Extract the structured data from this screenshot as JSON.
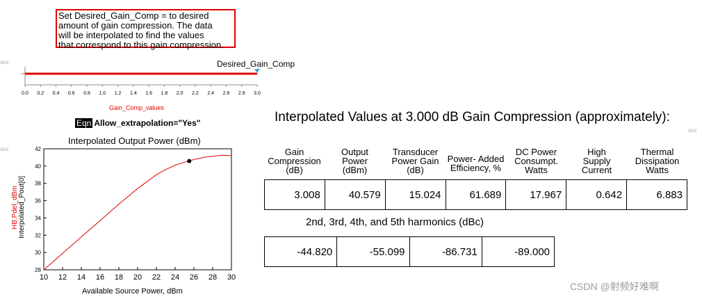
{
  "note": "Set Desired_Gain_Comp =  to desired\namount of gain compression.  The data\nwill be interpolated to find the values\nthat correspond to this gain compression.",
  "ads_tag": "ADS",
  "slider": {
    "label": "Desired_Gain_Comp",
    "axis_label": "Gain_Comp_values",
    "ticks": [
      "0.0",
      "0.2",
      "0.4",
      "0.6",
      "0.8",
      "1.0",
      "1.2",
      "1.4",
      "1.6",
      "1.8",
      "2.0",
      "2.2",
      "2.4",
      "2.6",
      "2.8",
      "3.0"
    ],
    "value": 3.0,
    "min": 0.0,
    "max": 3.0
  },
  "equation": {
    "tag": "Eqn",
    "text": "Allow_extrapolation=\"Yes\""
  },
  "chart_data": {
    "type": "line",
    "title": "Interpolated Output Power (dBm)",
    "xlabel": "Available Source Power, dBm",
    "ylabel_red": "HB.Pdel_dBm",
    "ylabel_black": "Interpolated_Pout[0]",
    "xlim": [
      10,
      30
    ],
    "ylim": [
      28,
      42
    ],
    "x_ticks": [
      "10",
      "12",
      "14",
      "16",
      "18",
      "20",
      "22",
      "24",
      "26",
      "28",
      "30"
    ],
    "y_ticks": [
      "28",
      "30",
      "32",
      "34",
      "36",
      "38",
      "40",
      "42"
    ],
    "series": [
      {
        "x": [
          10,
          12,
          14,
          16,
          18,
          20,
          21,
          22,
          23,
          24,
          25,
          26,
          27,
          28,
          29,
          30
        ],
        "y": [
          28.0,
          29.9,
          31.8,
          33.7,
          35.6,
          37.4,
          38.2,
          39.0,
          39.6,
          40.1,
          40.45,
          40.75,
          41.0,
          41.15,
          41.25,
          41.2
        ],
        "color": "#e00000"
      }
    ],
    "marker": {
      "x": 25.5,
      "y": 40.58
    },
    "grid": false
  },
  "results": {
    "title": "Interpolated Values at 3.000 dB Gain Compression (approximately):",
    "headers": [
      [
        "Gain",
        "Compression",
        "(dB)"
      ],
      [
        "Output",
        "Power",
        "(dBm)"
      ],
      [
        "Transducer",
        "Power Gain",
        "(dB)"
      ],
      [
        "Power- Added",
        "Efficiency,  %"
      ],
      [
        "DC Power",
        "Consumpt.",
        "Watts"
      ],
      [
        "High",
        "Supply",
        "Current"
      ],
      [
        "Thermal",
        "Dissipation",
        "Watts"
      ]
    ],
    "values": [
      "3.008",
      "40.579",
      "15.024",
      "61.689",
      "17.967",
      "0.642",
      "6.883"
    ]
  },
  "harmonics": {
    "title": "2nd, 3rd, 4th, and 5th harmonics (dBc)",
    "values": [
      "-44.820",
      "-55.099",
      "-86.731",
      "-89.000"
    ]
  },
  "watermark": "CSDN @射频好难啊"
}
